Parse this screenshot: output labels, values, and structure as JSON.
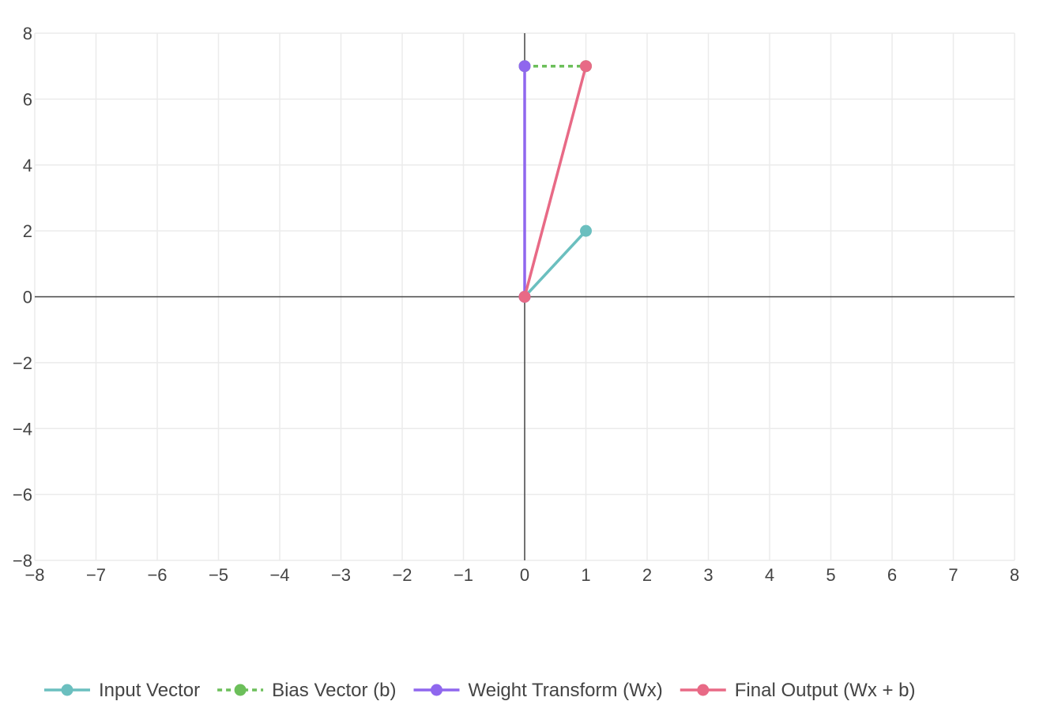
{
  "chart_data": {
    "type": "line",
    "title": "",
    "xlabel": "",
    "ylabel": "",
    "xlim": [
      -8,
      8
    ],
    "ylim": [
      -8,
      8
    ],
    "x_ticks": [
      "−8",
      "−7",
      "−6",
      "−5",
      "−4",
      "−3",
      "−2",
      "−1",
      "0",
      "1",
      "2",
      "3",
      "4",
      "5",
      "6",
      "7",
      "8"
    ],
    "y_ticks": [
      "8",
      "6",
      "4",
      "2",
      "0",
      "−2",
      "−4",
      "−6",
      "−8"
    ],
    "grid": true,
    "legend_position": "bottom",
    "series": [
      {
        "name": "Input Vector",
        "points": [
          [
            0,
            0
          ],
          [
            1,
            2
          ]
        ],
        "color": "#6bbfbf",
        "dash": "solid"
      },
      {
        "name": "Bias Vector (b)",
        "points": [
          [
            0,
            7
          ],
          [
            1,
            7
          ]
        ],
        "color": "#6cbf5a",
        "dash": "dotted"
      },
      {
        "name": "Weight Transform (Wx)",
        "points": [
          [
            0,
            0
          ],
          [
            0,
            7
          ]
        ],
        "color": "#8f67ee",
        "dash": "solid"
      },
      {
        "name": "Final Output (Wx + b)",
        "points": [
          [
            0,
            0
          ],
          [
            1,
            7
          ]
        ],
        "color": "#e86a86",
        "dash": "solid"
      }
    ]
  }
}
